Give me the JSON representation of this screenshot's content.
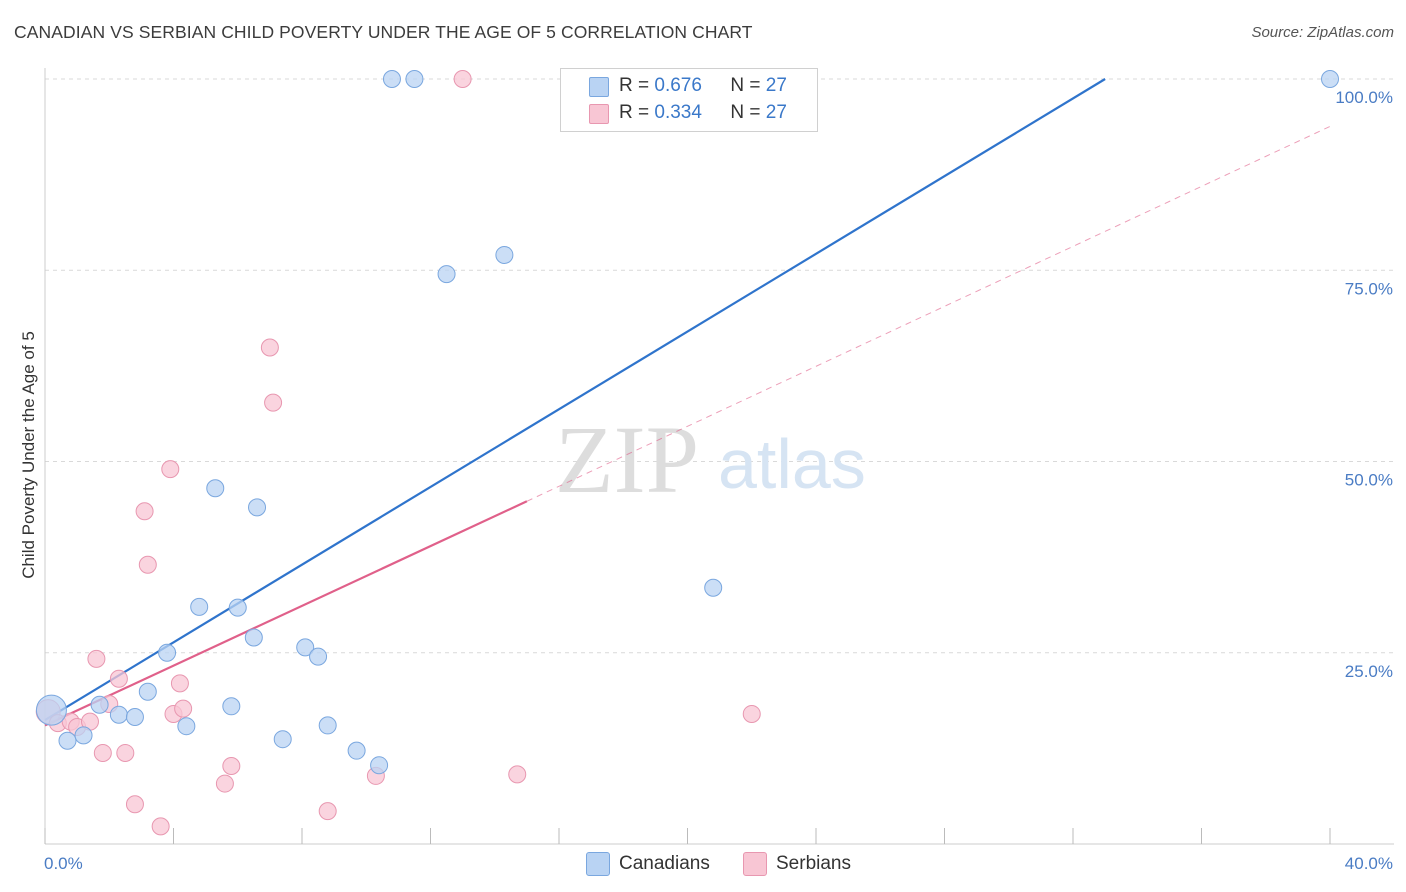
{
  "header": {
    "title": "CANADIAN VS SERBIAN CHILD POVERTY UNDER THE AGE OF 5 CORRELATION CHART",
    "source": "Source: ZipAtlas.com"
  },
  "watermark": {
    "zip": "ZIP",
    "atlas": "atlas"
  },
  "legend": {
    "canadians": {
      "r_label": "R = ",
      "r_value": "0.676",
      "n_label": "N = ",
      "n_value": "27"
    },
    "serbians": {
      "r_label": "R = ",
      "r_value": "0.334",
      "n_label": "N = ",
      "n_value": "27"
    }
  },
  "colors": {
    "canadian_fill": "#b9d3f3",
    "canadian_stroke": "#7aa7df",
    "canadian_line": "#2f74cc",
    "serbian_fill": "#f8c6d4",
    "serbian_stroke": "#e897b0",
    "serbian_line": "#e0608a",
    "axis_label": "#4a7cc4",
    "grid": "#d9d9d9"
  },
  "chart_data": {
    "type": "scatter",
    "title": "CANADIAN VS SERBIAN CHILD POVERTY UNDER THE AGE OF 5 CORRELATION CHART",
    "xlabel": "",
    "ylabel": "Child Poverty Under the Age of 5",
    "xlim": [
      0,
      40
    ],
    "ylim": [
      0,
      100
    ],
    "x_tick_labels": [
      "0.0%",
      "40.0%"
    ],
    "y_ticks": [
      25,
      50,
      75,
      100
    ],
    "y_tick_labels": [
      "25.0%",
      "50.0%",
      "75.0%",
      "100.0%"
    ],
    "grid": true,
    "legend_position": "top-center",
    "series": [
      {
        "name": "Canadians",
        "r": 0.676,
        "n": 27,
        "points": [
          [
            0.2,
            17.5
          ],
          [
            0.7,
            13.5
          ],
          [
            1.2,
            14.2
          ],
          [
            1.7,
            18.2
          ],
          [
            2.3,
            16.9
          ],
          [
            2.8,
            16.6
          ],
          [
            3.2,
            19.9
          ],
          [
            3.8,
            25.0
          ],
          [
            4.4,
            15.4
          ],
          [
            4.8,
            31.0
          ],
          [
            5.3,
            46.5
          ],
          [
            5.8,
            18.0
          ],
          [
            6.0,
            30.9
          ],
          [
            6.5,
            27.0
          ],
          [
            6.6,
            44.0
          ],
          [
            7.4,
            13.7
          ],
          [
            8.1,
            25.7
          ],
          [
            8.5,
            24.5
          ],
          [
            8.8,
            15.5
          ],
          [
            9.7,
            12.2
          ],
          [
            10.4,
            10.3
          ],
          [
            10.8,
            100
          ],
          [
            11.5,
            100
          ],
          [
            12.5,
            74.5
          ],
          [
            14.3,
            77.0
          ],
          [
            20.8,
            33.5
          ],
          [
            40.0,
            100
          ]
        ],
        "trend": {
          "x": [
            0.0,
            33.0
          ],
          "y": [
            16.2,
            100.0
          ]
        }
      },
      {
        "name": "Serbians",
        "r": 0.334,
        "n": 27,
        "points": [
          [
            0.1,
            17.3
          ],
          [
            0.4,
            15.8
          ],
          [
            0.8,
            16.0
          ],
          [
            1.0,
            15.3
          ],
          [
            1.4,
            16.0
          ],
          [
            1.6,
            24.2
          ],
          [
            1.8,
            11.9
          ],
          [
            2.0,
            18.3
          ],
          [
            2.3,
            21.6
          ],
          [
            2.5,
            11.9
          ],
          [
            2.8,
            5.2
          ],
          [
            3.1,
            43.5
          ],
          [
            3.2,
            36.5
          ],
          [
            3.6,
            2.3
          ],
          [
            3.9,
            49.0
          ],
          [
            4.0,
            17.0
          ],
          [
            4.2,
            21.0
          ],
          [
            4.3,
            17.7
          ],
          [
            5.6,
            7.9
          ],
          [
            5.8,
            10.2
          ],
          [
            7.0,
            64.9
          ],
          [
            7.1,
            57.7
          ],
          [
            8.8,
            4.3
          ],
          [
            10.3,
            8.9
          ],
          [
            13.0,
            100
          ],
          [
            14.7,
            9.1
          ],
          [
            22.0,
            17.0
          ]
        ],
        "trend": {
          "x": [
            0.0,
            15.0
          ],
          "y": [
            15.5,
            44.8
          ]
        },
        "trend_extension": {
          "x": [
            15.0,
            40.0
          ],
          "y": [
            44.8,
            93.8
          ]
        }
      }
    ]
  },
  "bottom_legend": [
    "Canadians",
    "Serbians"
  ]
}
